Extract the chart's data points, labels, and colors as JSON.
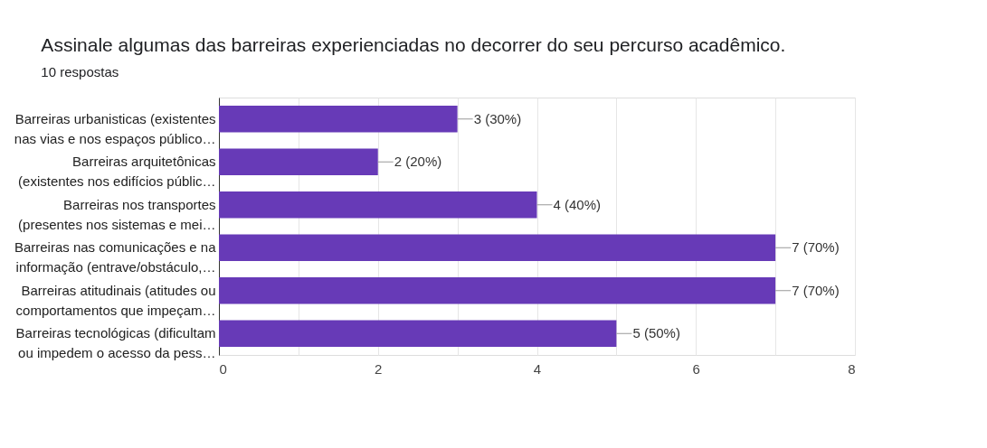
{
  "chart_data": {
    "type": "bar",
    "orientation": "horizontal",
    "title": "Assinale algumas das barreiras experienciadas no decorrer do seu percurso acadêmico.",
    "subtitle": "10 respostas",
    "categories": [
      "Barreiras urbanisticas (existentes\nnas vias e nos espaços público…",
      "Barreiras arquitetônicas\n(existentes nos edifícios públic…",
      "Barreiras nos transportes\n(presentes nos sistemas e mei…",
      "Barreiras nas comunicações e na\ninformação (entrave/obstáculo,…",
      "Barreiras atitudinais (atitudes ou\ncomportamentos que impeçam…",
      "Barreiras tecnológicas (dificultam\nou impedem o acesso da pess…"
    ],
    "values": [
      3,
      2,
      4,
      7,
      7,
      5
    ],
    "value_labels": [
      "3 (30%)",
      "2 (20%)",
      "4 (40%)",
      "7 (70%)",
      "7 (70%)",
      "5 (50%)"
    ],
    "color": "#673ab7",
    "xlim": [
      0,
      8
    ],
    "xticks": [
      0,
      {
        "value": 1,
        "label": null
      },
      2,
      {
        "value": 3,
        "label": null
      },
      4,
      {
        "value": 5,
        "label": null
      },
      6,
      {
        "value": 7,
        "label": null
      },
      8
    ],
    "grid": "x"
  }
}
